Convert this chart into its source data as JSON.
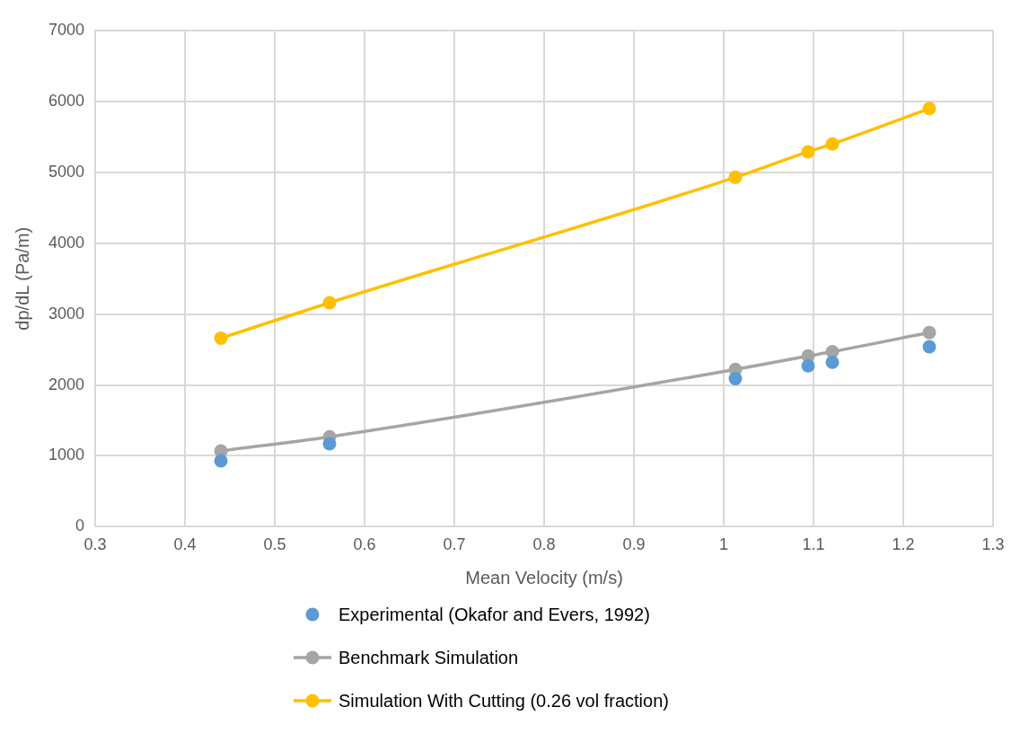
{
  "chart_data": {
    "type": "scatter",
    "xlabel": "Mean Velocity (m/s)",
    "ylabel": "dp/dL (Pa/m)",
    "xlim": [
      0.3,
      1.3
    ],
    "xticks": [
      0.3,
      0.4,
      0.5,
      0.6,
      0.7,
      0.8,
      0.9,
      1,
      1.1,
      1.2,
      1.3
    ],
    "ylim": [
      0,
      7000
    ],
    "yticks": [
      0,
      1000,
      2000,
      3000,
      4000,
      5000,
      6000,
      7000
    ],
    "grid": true,
    "legend": "bottom",
    "marker": "circle",
    "x": [
      0.44,
      0.561,
      1.013,
      1.094,
      1.121,
      1.229
    ],
    "series": [
      {
        "name": "Experimental (Okafor and Evers, 1992)",
        "type": "scatter",
        "color": "#5b9bd5",
        "values": [
          930,
          1170,
          2090,
          2270,
          2320,
          2540
        ]
      },
      {
        "name": "Benchmark Simulation",
        "type": "line",
        "color": "#a5a5a5",
        "values": [
          1070,
          1270,
          2220,
          2410,
          2470,
          2740
        ]
      },
      {
        "name": "Simulation With Cutting (0.26 vol fraction)",
        "type": "line",
        "color": "#ffc000",
        "values": [
          2660,
          3160,
          4930,
          5290,
          5400,
          5900
        ]
      }
    ]
  }
}
